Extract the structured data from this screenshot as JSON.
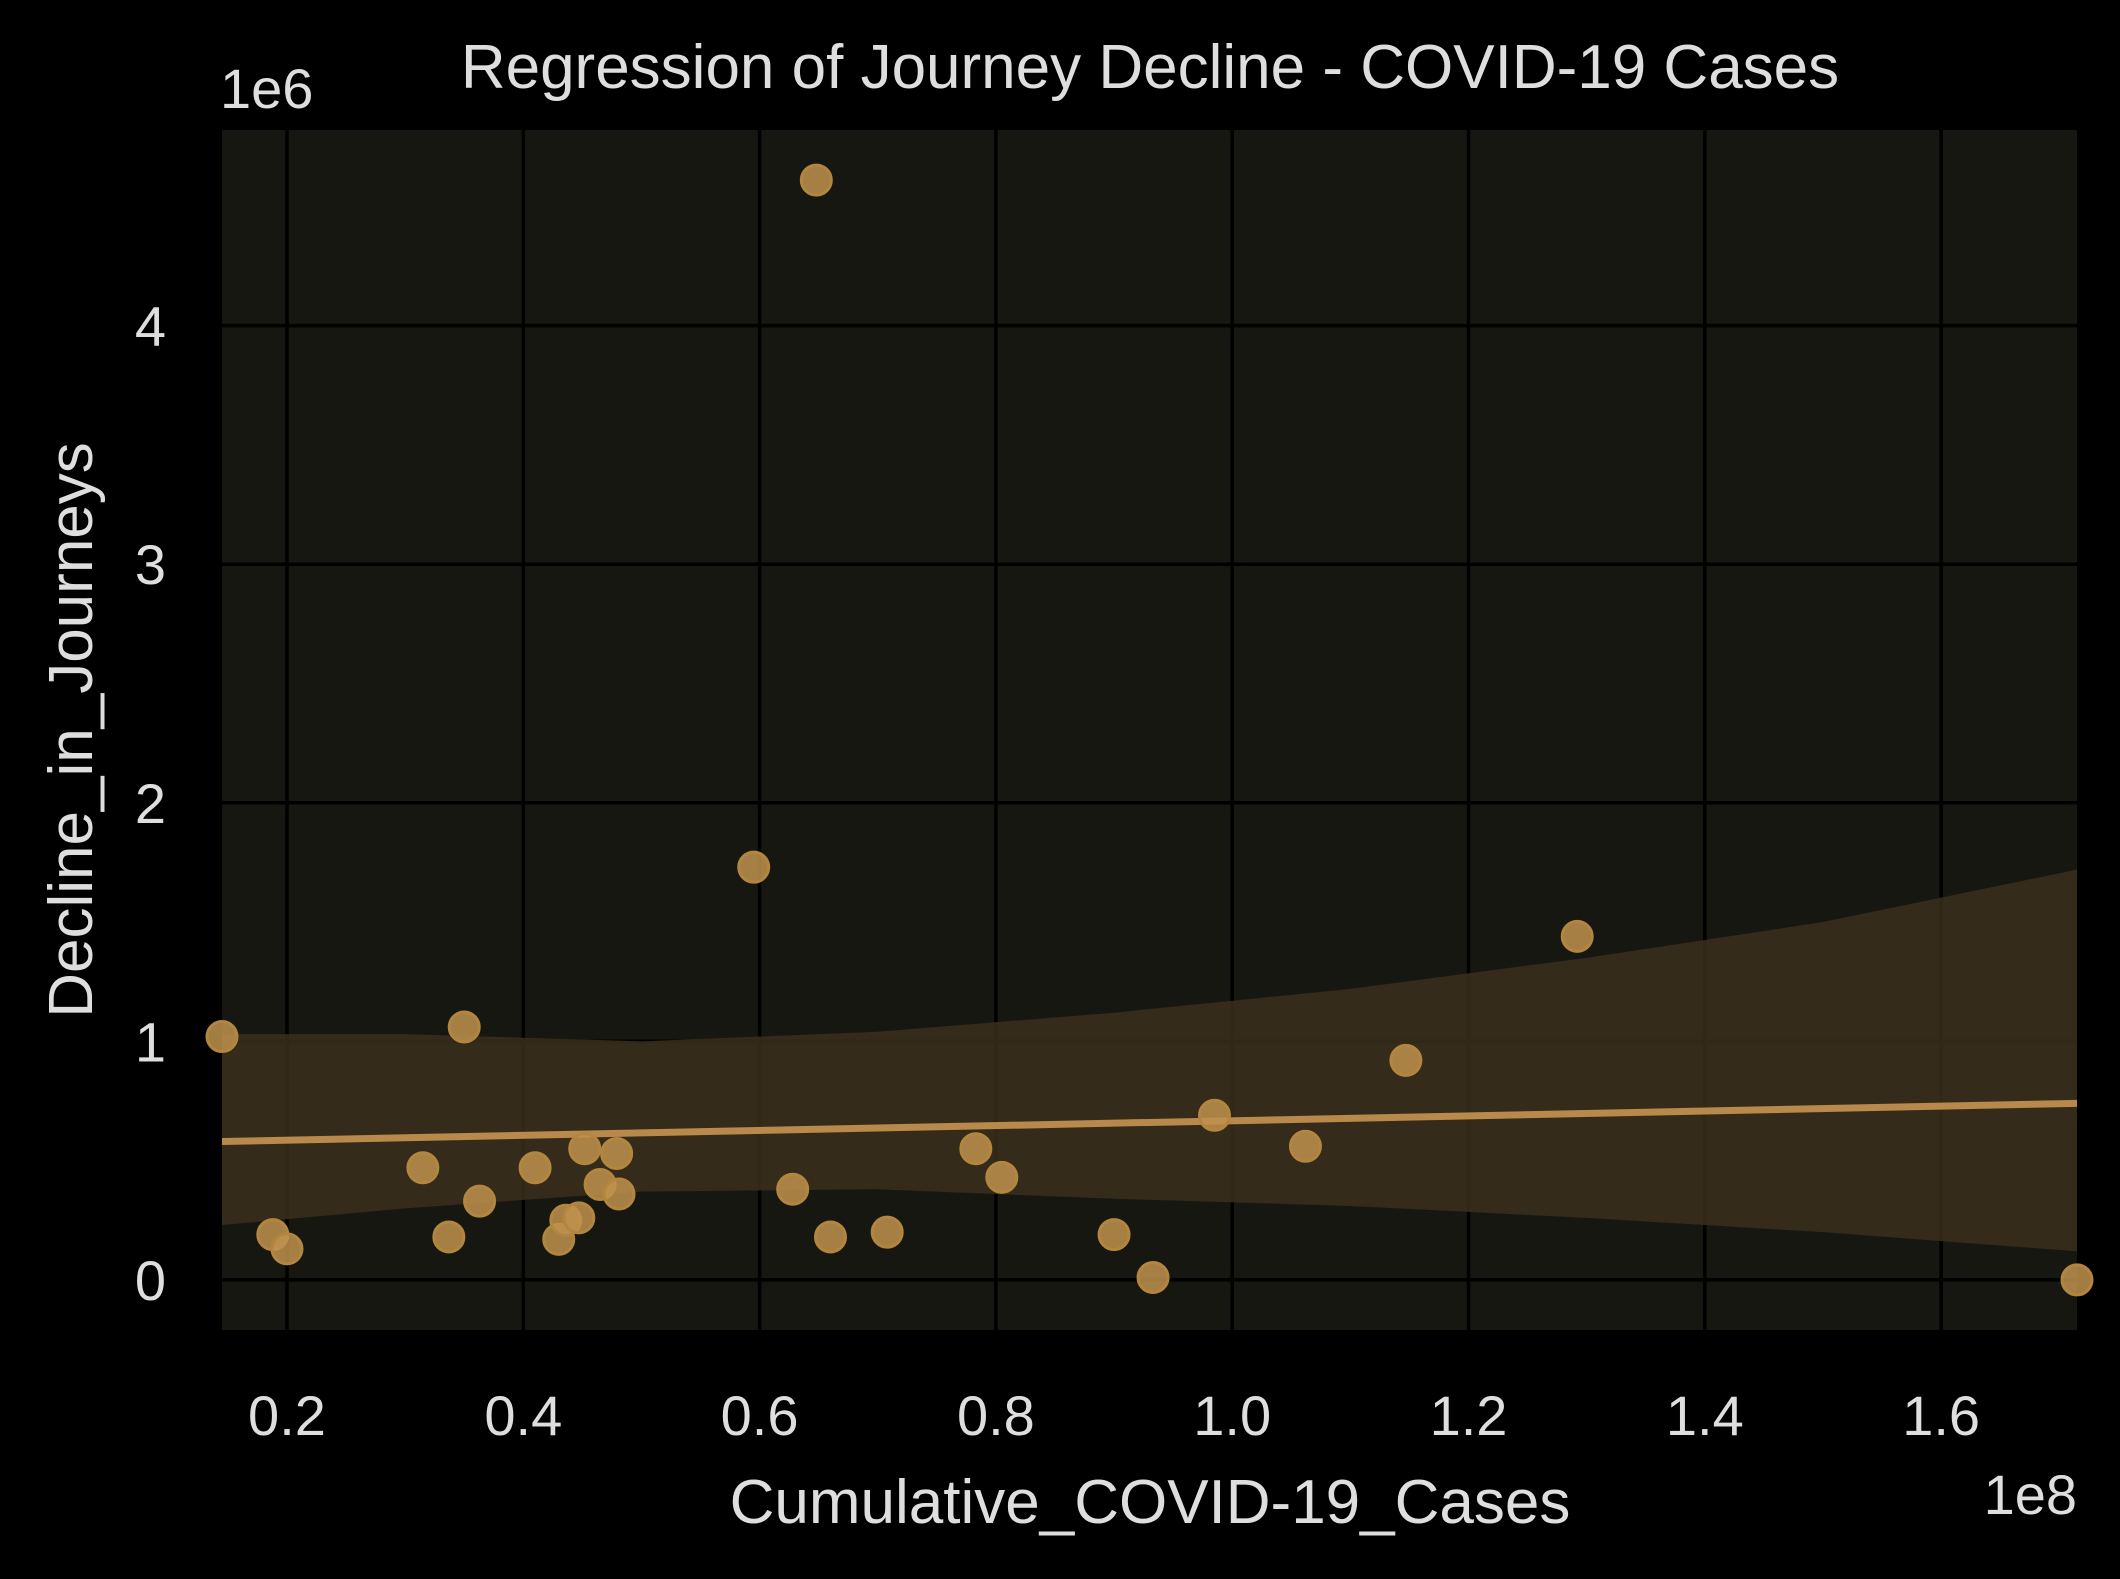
{
  "chart_data": {
    "type": "scatter",
    "title": "Regression of Journey Decline - COVID-19 Cases",
    "xlabel": "Cumulative_COVID-19_Cases",
    "ylabel": "Decline_in_Journeys",
    "x_multiplier_label": "1e8",
    "y_multiplier_label": "1e6",
    "x_scale": 100000000,
    "y_scale": 1000000,
    "xlim": [
      0.145,
      1.715
    ],
    "ylim": [
      -0.21,
      4.82
    ],
    "xticks": [
      0.2,
      0.4,
      0.6,
      0.8,
      1.0,
      1.2,
      1.4,
      1.6
    ],
    "xtick_labels": [
      "0.2",
      "0.4",
      "0.6",
      "0.8",
      "1.0",
      "1.2",
      "1.4",
      "1.6"
    ],
    "yticks": [
      0,
      1,
      2,
      3,
      4
    ],
    "ytick_labels": [
      "0",
      "1",
      "2",
      "3",
      "4"
    ],
    "grid": true,
    "colors": {
      "background": "#000000",
      "plot_background": "#171711",
      "grid": "#000000",
      "points": "#c0924e",
      "line": "#b8894a",
      "band": "#3a2f1c",
      "text": "#dedede"
    },
    "points": [
      {
        "x": 0.145,
        "y": 1.02
      },
      {
        "x": 0.188,
        "y": 0.19
      },
      {
        "x": 0.2,
        "y": 0.13
      },
      {
        "x": 0.315,
        "y": 0.47
      },
      {
        "x": 0.337,
        "y": 0.18
      },
      {
        "x": 0.35,
        "y": 1.06
      },
      {
        "x": 0.363,
        "y": 0.33
      },
      {
        "x": 0.41,
        "y": 0.47
      },
      {
        "x": 0.43,
        "y": 0.17
      },
      {
        "x": 0.436,
        "y": 0.25
      },
      {
        "x": 0.447,
        "y": 0.26
      },
      {
        "x": 0.452,
        "y": 0.55
      },
      {
        "x": 0.465,
        "y": 0.4
      },
      {
        "x": 0.479,
        "y": 0.53
      },
      {
        "x": 0.481,
        "y": 0.36
      },
      {
        "x": 0.595,
        "y": 1.73
      },
      {
        "x": 0.628,
        "y": 0.38
      },
      {
        "x": 0.648,
        "y": 4.61
      },
      {
        "x": 0.66,
        "y": 0.18
      },
      {
        "x": 0.708,
        "y": 0.2
      },
      {
        "x": 0.783,
        "y": 0.55
      },
      {
        "x": 0.805,
        "y": 0.43
      },
      {
        "x": 0.9,
        "y": 0.19
      },
      {
        "x": 0.933,
        "y": 0.01
      },
      {
        "x": 0.985,
        "y": 0.69
      },
      {
        "x": 1.062,
        "y": 0.56
      },
      {
        "x": 1.147,
        "y": 0.92
      },
      {
        "x": 1.292,
        "y": 1.44
      },
      {
        "x": 1.715,
        "y": 0.0
      }
    ],
    "regression": {
      "x": [
        0.145,
        1.715
      ],
      "y": [
        0.58,
        0.74
      ]
    },
    "confidence_band": {
      "x": [
        0.145,
        0.3,
        0.5,
        0.7,
        0.9,
        1.1,
        1.3,
        1.5,
        1.715
      ],
      "upper": [
        1.03,
        1.03,
        1.0,
        1.04,
        1.12,
        1.22,
        1.35,
        1.5,
        1.72
      ],
      "lower": [
        0.23,
        0.3,
        0.37,
        0.38,
        0.34,
        0.31,
        0.26,
        0.2,
        0.12
      ]
    }
  }
}
